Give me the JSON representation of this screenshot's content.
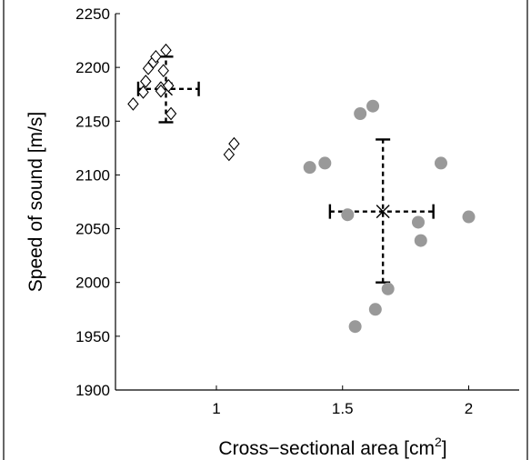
{
  "chart_data": {
    "type": "scatter",
    "xlabel": "Cross−sectional area [cm",
    "xlabel_sup": "2",
    "xlabel_end": "]",
    "ylabel": "Speed of sound [m/s]",
    "xlim": [
      0.6,
      2.2
    ],
    "ylim": [
      1900,
      2250
    ],
    "xticks": [
      1,
      1.5,
      2
    ],
    "xtick_labels": [
      "1",
      "1.5",
      "2"
    ],
    "yticks": [
      1900,
      1950,
      2000,
      2050,
      2100,
      2150,
      2200,
      2250
    ],
    "ytick_labels": [
      "1900",
      "1950",
      "2000",
      "2050",
      "2100",
      "2150",
      "2200",
      "2250"
    ],
    "grid": false,
    "series": [
      {
        "marker": "diamond",
        "color": "#000000",
        "points": [
          [
            0.67,
            2166
          ],
          [
            0.71,
            2177
          ],
          [
            0.72,
            2187
          ],
          [
            0.73,
            2199
          ],
          [
            0.75,
            2205
          ],
          [
            0.76,
            2210
          ],
          [
            0.78,
            2181
          ],
          [
            0.78,
            2178
          ],
          [
            0.79,
            2197
          ],
          [
            0.8,
            2216
          ],
          [
            0.81,
            2183
          ],
          [
            0.82,
            2157
          ],
          [
            1.05,
            2119
          ],
          [
            1.07,
            2129
          ]
        ],
        "mean": [
          0.8,
          2180
        ],
        "x_err": [
          0.69,
          0.93
        ],
        "y_err": [
          2149,
          2210
        ]
      },
      {
        "marker": "circle",
        "color": "#999999",
        "points": [
          [
            1.37,
            2107
          ],
          [
            1.43,
            2111
          ],
          [
            1.52,
            2063
          ],
          [
            1.55,
            1959
          ],
          [
            1.57,
            2157
          ],
          [
            1.62,
            2164
          ],
          [
            1.63,
            1975
          ],
          [
            1.68,
            1994
          ],
          [
            1.8,
            2056
          ],
          [
            1.81,
            2039
          ],
          [
            1.89,
            2111
          ],
          [
            2.0,
            2061
          ]
        ],
        "mean": [
          1.66,
          2066
        ],
        "x_err": [
          1.45,
          1.86
        ],
        "y_err": [
          2000,
          2133
        ]
      }
    ]
  }
}
